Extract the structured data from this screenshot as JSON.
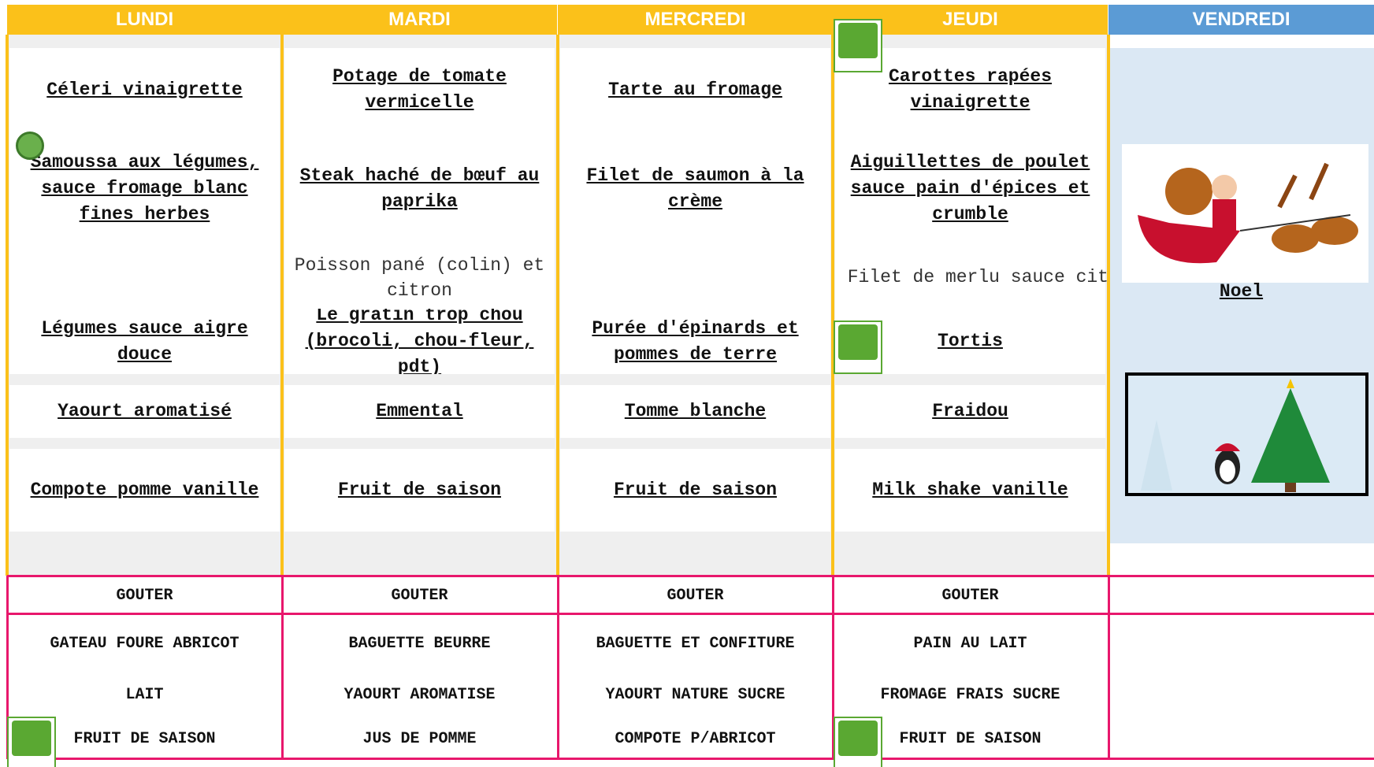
{
  "menu": {
    "headers": [
      "LUNDI",
      "MARDI",
      "MERCREDI",
      "JEUDI",
      "VENDREDI"
    ],
    "columns": [
      {
        "starter": "Céleri vinaigrette",
        "main": "Samoussa aux légumes, sauce fromage blanc fines herbes",
        "side": "Légumes sauce aigre douce",
        "dairy": "Yaourt aromatisé",
        "dessert": "Compote pomme vanille"
      },
      {
        "starter": "Potage de tomate vermicelle",
        "main": "Steak haché de bœuf au paprika",
        "side": "Le gratin trop chou (brocoli, chou-fleur, pdt)",
        "dairy": "Emmental",
        "dessert": "Fruit de saison"
      },
      {
        "starter": "Tarte au fromage",
        "main": "Filet de saumon à la crème",
        "side": "Purée d'épinards et pommes de terre",
        "dairy": "Tomme blanche",
        "dessert": "Fruit de saison"
      },
      {
        "starter": "Carottes rapées vinaigrette",
        "main": "Aiguillettes de poulet sauce pain d'épices et crumble",
        "side": "Tortis",
        "dairy": "Fraidou",
        "dessert": "Milk shake vanille"
      }
    ],
    "alternates": [
      "Poisson pané (colin) et citron",
      "Filet de merlu sauce cit"
    ],
    "friday_label": "Noel"
  },
  "gouter": {
    "titles": [
      "GOUTER",
      "GOUTER",
      "GOUTER",
      "GOUTER"
    ],
    "columns": [
      [
        "GATEAU FOURE ABRICOT",
        "LAIT",
        "FRUIT DE SAISON"
      ],
      [
        "BAGUETTE BEURRE",
        "YAOURT AROMATISE",
        "JUS DE POMME"
      ],
      [
        "BAGUETTE ET CONFITURE",
        "YAOURT NATURE SUCRE",
        "COMPOTE P/ABRICOT"
      ],
      [
        "PAIN AU LAIT",
        "FROMAGE FRAIS SUCRE",
        "FRUIT DE SAISON"
      ]
    ]
  }
}
